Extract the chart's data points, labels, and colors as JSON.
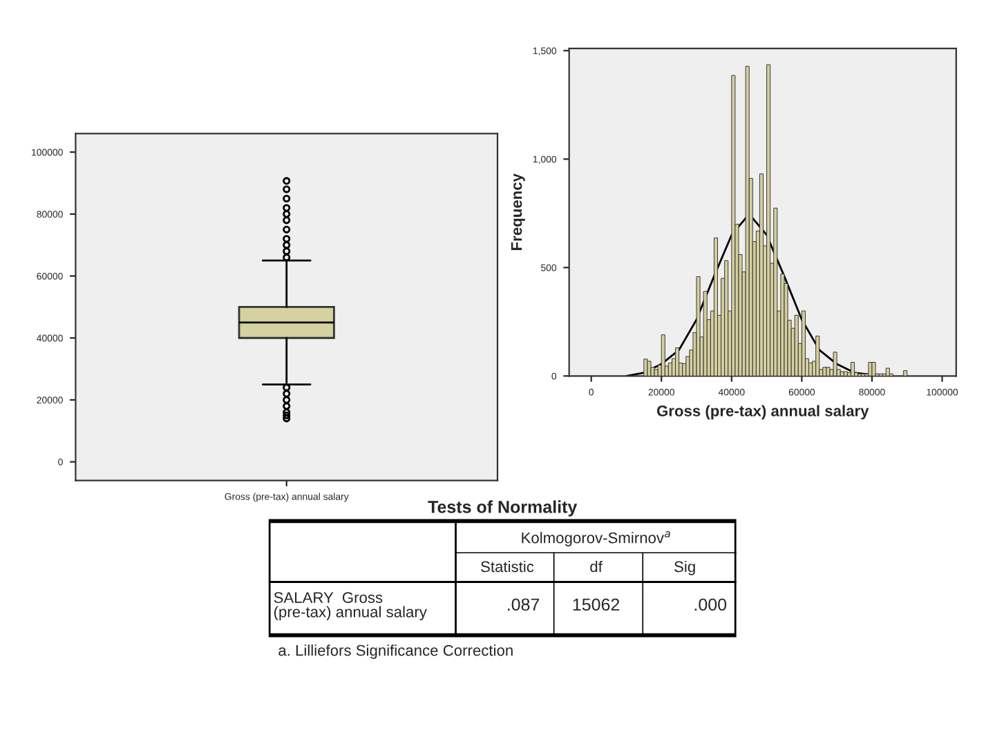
{
  "chart_data": [
    {
      "type": "box",
      "categories": [
        "Gross (pre-tax) annual salary"
      ],
      "color": "#d6d2a0",
      "ylim": [
        -6000,
        106000
      ],
      "yticks": [
        0,
        20000,
        40000,
        60000,
        80000,
        100000
      ],
      "boxes": [
        {
          "low": 25000,
          "q1": 40000,
          "median": 45000,
          "q3": 50000,
          "high": 65000,
          "outliers": [
            14000,
            15000,
            16000,
            18000,
            20000,
            22000,
            24000,
            66000,
            68000,
            70000,
            72000,
            75000,
            78000,
            80000,
            82000,
            85000,
            88000,
            90700
          ]
        }
      ]
    },
    {
      "type": "histogram",
      "xlabel": "Gross (pre-tax) annual salary",
      "ylabel": "Frequency",
      "xlim": [
        -6300,
        104000
      ],
      "xticks": [
        0,
        20000,
        40000,
        60000,
        80000,
        100000
      ],
      "ylim": [
        0,
        1510
      ],
      "yticks": [
        {
          "value": 0,
          "label": "0"
        },
        {
          "value": 500,
          "label": "500"
        },
        {
          "value": 1000,
          "label": "1,000"
        },
        {
          "value": 1500,
          "label": "1,500"
        }
      ],
      "bins": [
        15000,
        16000,
        17000,
        18000,
        19000,
        20000,
        21000,
        22000,
        23000,
        24000,
        25000,
        26000,
        27000,
        28000,
        29000,
        30000,
        31000,
        32000,
        33000,
        34000,
        35000,
        36000,
        37000,
        38000,
        39000,
        40000,
        41000,
        42000,
        43000,
        44000,
        45000,
        46000,
        47000,
        48000,
        49000,
        50000,
        51000,
        52000,
        53000,
        54000,
        55000,
        56000,
        57000,
        58000,
        59000,
        60000,
        61000,
        62000,
        63000,
        64000,
        65000,
        66000,
        67000,
        68000,
        69000,
        70000,
        71000,
        72000,
        73000,
        74000,
        75000,
        76000,
        77000,
        78000,
        79000,
        80000,
        81000,
        82000,
        83000,
        84000,
        85000,
        86000,
        87000,
        88000,
        89000,
        90000
      ],
      "series": [
        {
          "type": "histogram",
          "color": "#d4cf9e",
          "values": [
            78,
            68,
            40,
            30,
            50,
            190,
            46,
            60,
            80,
            130,
            60,
            57,
            90,
            120,
            200,
            458,
            180,
            390,
            260,
            300,
            637,
            280,
            450,
            532,
            300,
            1386,
            700,
            560,
            480,
            1428,
            911,
            620,
            669,
            932,
            600,
            1435,
            520,
            774,
            300,
            470,
            426,
            257,
            220,
            280,
            150,
            300,
            80,
            60,
            68,
            184,
            30,
            40,
            40,
            30,
            110,
            30,
            20,
            20,
            15,
            63,
            15,
            10,
            10,
            10,
            63,
            63,
            10,
            10,
            10,
            36,
            10,
            0,
            0,
            0,
            25
          ]
        },
        {
          "type": "line",
          "color": "#000000",
          "x": [
            10000,
            15000,
            20000,
            25000,
            30000,
            35000,
            40000,
            45000,
            50000,
            55000,
            60000,
            65000,
            70000,
            75000,
            80000,
            85000
          ],
          "values": [
            0,
            15,
            55,
            120,
            260,
            460,
            650,
            747,
            650,
            460,
            260,
            120,
            55,
            15,
            5,
            0
          ]
        }
      ]
    },
    {
      "type": "other",
      "annotations": [
        "Tests of Normality",
        "Kolmogorov-Smirnov$^{a}$",
        "Statistic",
        "df",
        "Sig",
        "SALARY  Gross\n(pre-tax) annual salary",
        ".087",
        "15062",
        ".000",
        "a. Lilliefors Significance Correction"
      ]
    }
  ]
}
